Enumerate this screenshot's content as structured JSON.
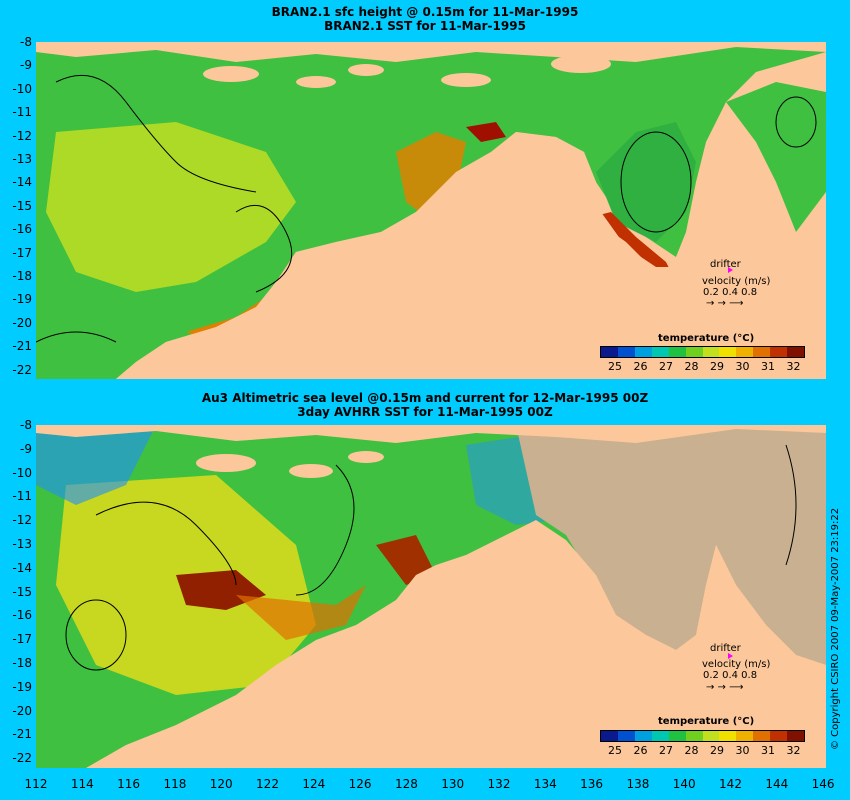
{
  "top_panel": {
    "title_line1": "BRAN2.1 sfc height @ 0.15m for 11-Mar-1995",
    "title_line2": "BRAN2.1 SST for 11-Mar-1995"
  },
  "bottom_panel": {
    "title_line1": "Au3 Altimetric sea level  @0.15m and current for 12-Mar-1995 00Z",
    "title_line2": "3day AVHRR SST for 11-Mar-1995 00Z"
  },
  "y_ticks": [
    "-8",
    "-9",
    "-10",
    "-11",
    "-12",
    "-13",
    "-14",
    "-15",
    "-16",
    "-17",
    "-18",
    "-19",
    "-20",
    "-21",
    "-22"
  ],
  "x_ticks": [
    "112",
    "114",
    "116",
    "118",
    "120",
    "122",
    "124",
    "126",
    "128",
    "130",
    "132",
    "134",
    "136",
    "138",
    "140",
    "142",
    "144",
    "146"
  ],
  "colorbar": {
    "title": "temperature (°C)",
    "labels": [
      "25",
      "26",
      "27",
      "28",
      "29",
      "30",
      "31",
      "32"
    ],
    "colors": [
      "#0a1a8c",
      "#0050d0",
      "#00a0e0",
      "#00c8b0",
      "#20c040",
      "#70d020",
      "#c0e020",
      "#f0e000",
      "#f0b000",
      "#e07000",
      "#c03000",
      "#801000"
    ]
  },
  "drifter_legend": {
    "label": "drifter",
    "velocity_label": "velocity (m/s)",
    "scale": "0.2 0.4 0.8",
    "arrows": "→  →  ⟶",
    "marker_color": "#ff00ff"
  },
  "copyright": "© Copyright CSIRO 2007  09-May-2007 23:19:22",
  "colors": {
    "ocean_warm": "#f0c800",
    "ocean_green": "#40c040",
    "land": "#fcc79a",
    "background": "#00ccff",
    "missing": "#c8b090"
  }
}
